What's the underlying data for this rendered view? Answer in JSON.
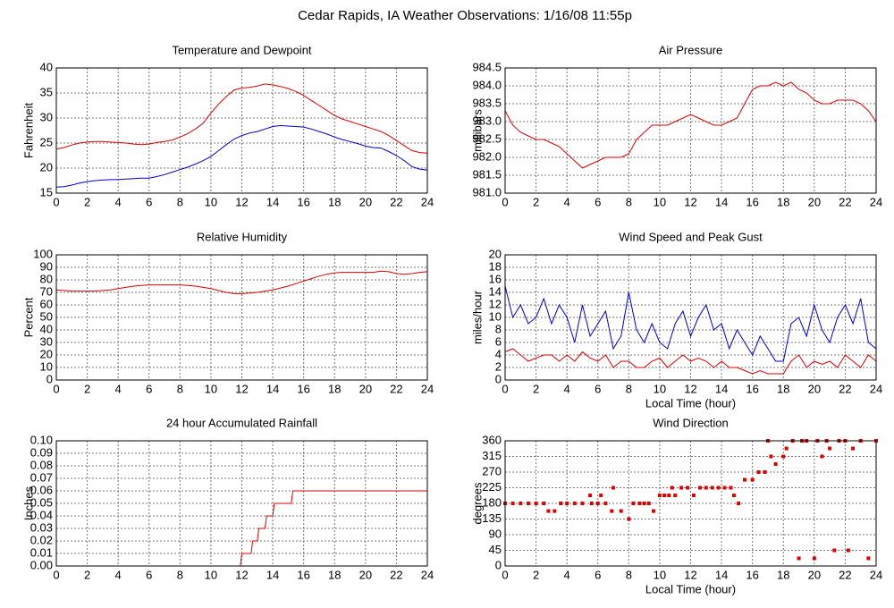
{
  "title": "Cedar Rapids, IA Weather Observations: 1/16/08 11:55p",
  "chart_data": [
    {
      "type": "line",
      "title": "Temperature and Dewpoint",
      "y_label": "Fahrenheit",
      "x": [
        0,
        0.5,
        1,
        1.5,
        2,
        2.5,
        3,
        3.5,
        4,
        4.5,
        5,
        5.5,
        6,
        6.5,
        7,
        7.5,
        8,
        8.5,
        9,
        9.5,
        10,
        10.5,
        11,
        11.5,
        12,
        12.5,
        13,
        13.5,
        14,
        14.5,
        15,
        15.5,
        16,
        16.5,
        17,
        17.5,
        18,
        18.5,
        19,
        19.5,
        20,
        20.5,
        21,
        21.5,
        22,
        22.5,
        23,
        23.5,
        24
      ],
      "series": [
        {
          "color": "#dd0000",
          "values": [
            23.8,
            24.1,
            24.6,
            25,
            25.2,
            25.3,
            25.3,
            25.2,
            25.1,
            25,
            24.8,
            24.7,
            24.8,
            25.1,
            25.3,
            25.6,
            26.2,
            26.9,
            27.8,
            29,
            31,
            32.8,
            34.3,
            35.6,
            36,
            36.1,
            36.4,
            36.8,
            36.6,
            36.3,
            35.9,
            35.3,
            34.5,
            33.5,
            32.5,
            31.5,
            30.5,
            29.8,
            29.3,
            28.8,
            28.3,
            27.8,
            27.3,
            26.5,
            25.5,
            24.5,
            23.5,
            23.1,
            23
          ]
        },
        {
          "color": "#0000cc",
          "values": [
            16.2,
            16.3,
            16.6,
            17,
            17.3,
            17.5,
            17.6,
            17.7,
            17.7,
            17.8,
            17.9,
            18,
            18,
            18.3,
            18.7,
            19.2,
            19.7,
            20.2,
            20.8,
            21.5,
            22.3,
            23.5,
            24.7,
            25.8,
            26.5,
            27,
            27.3,
            27.8,
            28.3,
            28.5,
            28.4,
            28.3,
            28.2,
            27.8,
            27.3,
            26.8,
            26.2,
            25.7,
            25.3,
            24.9,
            24.4,
            24.1,
            24,
            23.3,
            22.5,
            21.5,
            20.3,
            19.8,
            19.6
          ]
        }
      ],
      "xlim": [
        0,
        24
      ],
      "xticks": [
        0,
        2,
        4,
        6,
        8,
        10,
        12,
        14,
        16,
        18,
        20,
        22,
        24
      ],
      "ylim": [
        15,
        40
      ],
      "yticks": [
        15,
        20,
        25,
        30,
        35,
        40
      ],
      "grid": true
    },
    {
      "type": "line",
      "title": "Air Pressure",
      "y_label": "millibars",
      "x": [
        0,
        0.5,
        1,
        1.5,
        2,
        2.5,
        3,
        3.5,
        4,
        4.5,
        5,
        5.5,
        6,
        6.5,
        7,
        7.5,
        8,
        8.5,
        9,
        9.5,
        10,
        10.5,
        11,
        11.5,
        12,
        12.5,
        13,
        13.5,
        14,
        14.5,
        15,
        15.5,
        16,
        16.5,
        17,
        17.5,
        18,
        18.5,
        19,
        19.5,
        20,
        20.5,
        21,
        21.5,
        22,
        22.5,
        23,
        23.5,
        24
      ],
      "series": [
        {
          "color": "#dd0000",
          "values": [
            983.3,
            982.9,
            982.7,
            982.6,
            982.5,
            982.5,
            982.4,
            982.3,
            982.1,
            981.9,
            981.7,
            981.8,
            981.9,
            982.0,
            982.0,
            982.0,
            982.1,
            982.5,
            982.7,
            982.9,
            982.9,
            982.9,
            983.0,
            983.1,
            983.2,
            983.1,
            983.0,
            982.9,
            982.9,
            983.0,
            983.1,
            983.5,
            983.9,
            984.0,
            984.0,
            984.1,
            984.0,
            984.1,
            983.9,
            983.8,
            983.6,
            983.5,
            983.5,
            983.6,
            983.6,
            983.6,
            983.5,
            983.3,
            983.0
          ]
        }
      ],
      "xlim": [
        0,
        24
      ],
      "xticks": [
        0,
        2,
        4,
        6,
        8,
        10,
        12,
        14,
        16,
        18,
        20,
        22,
        24
      ],
      "ylim": [
        981,
        984.5
      ],
      "yticks": [
        {
          "value": 981,
          "label": "981.0"
        },
        {
          "value": 981.5,
          "label": "981.5"
        },
        {
          "value": 982,
          "label": "982.0"
        },
        {
          "value": 982.5,
          "label": "982.5"
        },
        {
          "value": 983,
          "label": "983.0"
        },
        {
          "value": 983.5,
          "label": "983.5"
        },
        {
          "value": 984,
          "label": "984.0"
        },
        {
          "value": 984.5,
          "label": "984.5"
        }
      ],
      "grid": true
    },
    {
      "type": "line",
      "title": "Relative Humidity",
      "y_label": "Percent",
      "x": [
        0,
        0.5,
        1,
        1.5,
        2,
        2.5,
        3,
        3.5,
        4,
        4.5,
        5,
        5.5,
        6,
        6.5,
        7,
        7.5,
        8,
        8.5,
        9,
        9.5,
        10,
        10.5,
        11,
        11.5,
        12,
        12.5,
        13,
        13.5,
        14,
        14.5,
        15,
        15.5,
        16,
        16.5,
        17,
        17.5,
        18,
        18.5,
        19,
        19.5,
        20,
        20.5,
        21,
        21.5,
        22,
        22.5,
        23,
        23.5,
        24
      ],
      "series": [
        {
          "color": "#dd0000",
          "values": [
            72,
            71.5,
            71,
            71,
            71,
            71,
            71.5,
            72,
            73,
            74,
            75,
            75.5,
            76,
            76,
            76,
            76,
            76,
            75.5,
            75,
            74,
            73,
            71.5,
            70,
            69,
            69,
            69.5,
            70,
            71,
            72,
            73.5,
            75,
            77,
            79,
            81,
            83,
            84.5,
            85.5,
            86,
            86,
            86,
            86,
            86,
            87,
            86.5,
            85,
            84.5,
            85,
            86,
            86.5
          ]
        }
      ],
      "xlim": [
        0,
        24
      ],
      "xticks": [
        0,
        2,
        4,
        6,
        8,
        10,
        12,
        14,
        16,
        18,
        20,
        22,
        24
      ],
      "ylim": [
        0,
        100
      ],
      "yticks": [
        0,
        10,
        20,
        30,
        40,
        50,
        60,
        70,
        80,
        90,
        100
      ],
      "grid": true
    },
    {
      "type": "line",
      "title": "Wind Speed and Peak Gust",
      "y_label": "miles/hour",
      "x_label": "Local Time (hour)",
      "x": [
        0,
        0.5,
        1,
        1.5,
        2,
        2.5,
        3,
        3.5,
        4,
        4.5,
        5,
        5.5,
        6,
        6.5,
        7,
        7.5,
        8,
        8.5,
        9,
        9.5,
        10,
        10.5,
        11,
        11.5,
        12,
        12.5,
        13,
        13.5,
        14,
        14.5,
        15,
        15.5,
        16,
        16.5,
        17,
        17.5,
        18,
        18.5,
        19,
        19.5,
        20,
        20.5,
        21,
        21.5,
        22,
        22.5,
        23,
        23.5,
        24
      ],
      "series": [
        {
          "color": "#0000cc",
          "values": [
            15,
            10,
            12,
            9,
            10,
            13,
            9,
            12,
            10,
            6,
            12,
            7,
            9,
            11,
            5,
            7,
            14,
            8,
            6,
            9,
            6,
            5,
            9,
            11,
            7,
            10,
            12,
            8,
            9,
            5,
            8,
            6,
            4,
            7,
            5,
            3,
            3,
            9,
            10,
            7,
            12,
            8,
            6,
            10,
            12,
            9,
            13,
            6,
            5
          ]
        },
        {
          "color": "#dd0000",
          "values": [
            4.5,
            5,
            4,
            3,
            3.5,
            4,
            4,
            3,
            4,
            3,
            4.5,
            3.5,
            3,
            4,
            2,
            3,
            3,
            2,
            2,
            3,
            3.5,
            2,
            3,
            4,
            3,
            3.5,
            3,
            2,
            3,
            2,
            2,
            1.5,
            1,
            1.5,
            1,
            1,
            1,
            3,
            4,
            2,
            3,
            2.5,
            3,
            2,
            4,
            3,
            2,
            4,
            3
          ]
        }
      ],
      "xlim": [
        0,
        24
      ],
      "xticks": [
        0,
        2,
        4,
        6,
        8,
        10,
        12,
        14,
        16,
        18,
        20,
        22,
        24
      ],
      "ylim": [
        0,
        20
      ],
      "yticks": [
        0,
        2,
        4,
        6,
        8,
        10,
        12,
        14,
        16,
        18,
        20
      ],
      "grid": true
    },
    {
      "type": "line",
      "title": "24 hour Accumulated Rainfall",
      "y_label": "Inches",
      "x": [
        0,
        11.9,
        12,
        12.6,
        12.7,
        13,
        13.1,
        13.5,
        13.6,
        14,
        14.1,
        14.6,
        14.7,
        15.2,
        15.3,
        24
      ],
      "series": [
        {
          "color": "#dd0000",
          "values": [
            0,
            0,
            0.01,
            0.01,
            0.02,
            0.02,
            0.03,
            0.03,
            0.04,
            0.04,
            0.05,
            0.05,
            0.05,
            0.05,
            0.06,
            0.06
          ]
        }
      ],
      "xlim": [
        0,
        24
      ],
      "xticks": [
        0,
        2,
        4,
        6,
        8,
        10,
        12,
        14,
        16,
        18,
        20,
        22,
        24
      ],
      "ylim": [
        0,
        0.1
      ],
      "yticks": [
        {
          "value": 0,
          "label": "0.00"
        },
        {
          "value": 0.01,
          "label": "0.01"
        },
        {
          "value": 0.02,
          "label": "0.02"
        },
        {
          "value": 0.03,
          "label": "0.03"
        },
        {
          "value": 0.04,
          "label": "0.04"
        },
        {
          "value": 0.05,
          "label": "0.05"
        },
        {
          "value": 0.06,
          "label": "0.06"
        },
        {
          "value": 0.07,
          "label": "0.07"
        },
        {
          "value": 0.08,
          "label": "0.08"
        },
        {
          "value": 0.09,
          "label": "0.09"
        },
        {
          "value": 0.1,
          "label": "0.10"
        }
      ],
      "grid": true
    },
    {
      "type": "scatter",
      "title": "Wind Direction",
      "y_label": "degrees",
      "x_label": "Local Time (hour)",
      "color": "#dd0000",
      "x": [
        0,
        0.5,
        1,
        1.5,
        2,
        2.5,
        2.8,
        3.2,
        3.6,
        4,
        4.5,
        5,
        5.5,
        5.6,
        6,
        6.2,
        6.5,
        6.9,
        7,
        7.5,
        8,
        8.3,
        8.7,
        9,
        9.3,
        9.6,
        10,
        10.3,
        10.6,
        10.8,
        11,
        11.4,
        11.8,
        12.2,
        12.6,
        13,
        13.4,
        13.8,
        14.2,
        14.6,
        14.8,
        15.1,
        15.5,
        16,
        16.4,
        16.8,
        17,
        17.2,
        17.5,
        18,
        18.2,
        18.6,
        19,
        19.2,
        19.5,
        20,
        20.2,
        20.5,
        20.8,
        21,
        21.3,
        21.6,
        22,
        22.2,
        22.5,
        23,
        23.5,
        24
      ],
      "values": [
        180,
        180,
        180,
        180,
        180,
        180,
        158,
        158,
        180,
        180,
        180,
        180,
        203,
        180,
        180,
        203,
        180,
        158,
        225,
        158,
        135,
        180,
        180,
        180,
        180,
        158,
        203,
        203,
        203,
        225,
        203,
        225,
        225,
        203,
        225,
        225,
        225,
        225,
        225,
        225,
        203,
        180,
        248,
        248,
        270,
        270,
        360,
        315,
        293,
        315,
        338,
        360,
        22,
        360,
        360,
        22,
        360,
        315,
        360,
        338,
        45,
        360,
        360,
        45,
        338,
        360,
        22,
        360
      ],
      "xlim": [
        0,
        24
      ],
      "xticks": [
        0,
        2,
        4,
        6,
        8,
        10,
        12,
        14,
        16,
        18,
        20,
        22,
        24
      ],
      "ylim": [
        0,
        360
      ],
      "yticks": [
        0,
        45,
        90,
        135,
        180,
        225,
        270,
        315,
        360
      ],
      "grid": true
    }
  ]
}
